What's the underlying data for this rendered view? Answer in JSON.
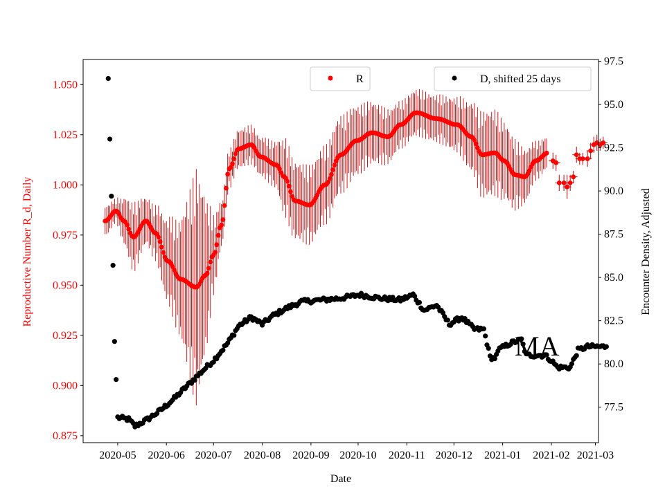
{
  "chart_data": {
    "type": "scatter",
    "xlabel": "Date",
    "ylabel_left": "Reproductive Number R_d, Daily",
    "ylabel_right": "Encounter Density, Adjusted",
    "annotation": "MA",
    "colors": {
      "left_axis": "#ff0000",
      "r_series": "#ff0000",
      "r_errorbar": "#cc0000",
      "d_series": "#000000",
      "frame": "#000000"
    },
    "xlim": [
      "2020-04-09",
      "2021-03-03"
    ],
    "ylim_left": [
      0.8715,
      1.0625
    ],
    "ylim_right": [
      75.45,
      97.6
    ],
    "x_ticks": [
      "2020-05",
      "2020-06",
      "2020-07",
      "2020-08",
      "2020-09",
      "2020-10",
      "2020-11",
      "2020-12",
      "2021-01",
      "2021-02",
      "2021-03"
    ],
    "x_tick_dates": [
      "2020-05-01",
      "2020-06-01",
      "2020-07-01",
      "2020-08-01",
      "2020-09-01",
      "2020-10-01",
      "2020-11-01",
      "2020-12-01",
      "2021-01-01",
      "2021-02-01",
      "2021-03-01"
    ],
    "y_left_ticks": [
      "0.875",
      "0.900",
      "0.925",
      "0.950",
      "0.975",
      "1.000",
      "1.025",
      "1.050"
    ],
    "y_right_ticks": [
      "77.5",
      "80.0",
      "82.5",
      "85.0",
      "87.5",
      "90.0",
      "92.5",
      "95.0",
      "97.5"
    ],
    "legend_left": {
      "label": "R",
      "position": "upper center"
    },
    "legend_right": {
      "label": "D, shifted 25 days",
      "position": "upper right"
    },
    "series": [
      {
        "name": "R",
        "axis": "left",
        "marker": "dot",
        "error_bars": true,
        "knots": [
          [
            "2020-04-23",
            0.982,
            0.008
          ],
          [
            "2020-04-30",
            0.987,
            0.006
          ],
          [
            "2020-05-05",
            0.982,
            0.012
          ],
          [
            "2020-05-11",
            0.974,
            0.018
          ],
          [
            "2020-05-19",
            0.982,
            0.012
          ],
          [
            "2020-05-25",
            0.976,
            0.014
          ],
          [
            "2020-06-02",
            0.962,
            0.022
          ],
          [
            "2020-06-10",
            0.953,
            0.03
          ],
          [
            "2020-06-20",
            0.949,
            0.06
          ],
          [
            "2020-06-26",
            0.955,
            0.04
          ],
          [
            "2020-07-01",
            0.965,
            0.02
          ],
          [
            "2020-07-06",
            0.98,
            0.012
          ],
          [
            "2020-07-11",
            1.008,
            0.01
          ],
          [
            "2020-07-17",
            1.018,
            0.01
          ],
          [
            "2020-07-25",
            1.02,
            0.01
          ],
          [
            "2020-07-31",
            1.014,
            0.01
          ],
          [
            "2020-08-10",
            1.01,
            0.012
          ],
          [
            "2020-08-15",
            1.004,
            0.02
          ],
          [
            "2020-08-22",
            0.992,
            0.02
          ],
          [
            "2020-08-31",
            0.99,
            0.02
          ],
          [
            "2020-09-10",
            1.0,
            0.02
          ],
          [
            "2020-09-20",
            1.015,
            0.02
          ],
          [
            "2020-09-30",
            1.022,
            0.018
          ],
          [
            "2020-10-10",
            1.026,
            0.016
          ],
          [
            "2020-10-20",
            1.024,
            0.014
          ],
          [
            "2020-10-28",
            1.03,
            0.012
          ],
          [
            "2020-11-07",
            1.036,
            0.012
          ],
          [
            "2020-11-20",
            1.033,
            0.012
          ],
          [
            "2020-12-03",
            1.03,
            0.014
          ],
          [
            "2020-12-12",
            1.024,
            0.018
          ],
          [
            "2020-12-19",
            1.015,
            0.022
          ],
          [
            "2020-12-27",
            1.016,
            0.022
          ],
          [
            "2021-01-02",
            1.012,
            0.02
          ],
          [
            "2021-01-09",
            1.005,
            0.018
          ],
          [
            "2021-01-15",
            1.004,
            0.014
          ],
          [
            "2021-01-22",
            1.012,
            0.01
          ],
          [
            "2021-01-30",
            1.016,
            0.008
          ]
        ],
        "sparse_points": [
          [
            "2021-02-02",
            1.012,
            0.004
          ],
          [
            "2021-02-04",
            1.011,
            0.004
          ],
          [
            "2021-02-06",
            1.001,
            0.004
          ],
          [
            "2021-02-09",
            1.001,
            0.004
          ],
          [
            "2021-02-11",
            0.999,
            0.006
          ],
          [
            "2021-02-13",
            1.001,
            0.004
          ],
          [
            "2021-02-15",
            1.004,
            0.003
          ],
          [
            "2021-02-17",
            1.015,
            0.004
          ],
          [
            "2021-02-19",
            1.013,
            0.003
          ],
          [
            "2021-02-21",
            1.013,
            0.003
          ],
          [
            "2021-02-24",
            1.013,
            0.004
          ],
          [
            "2021-02-26",
            1.017,
            0.004
          ],
          [
            "2021-02-28",
            1.02,
            0.004
          ],
          [
            "2021-03-02",
            1.021,
            0.004
          ],
          [
            "2021-03-04",
            1.02,
            0.003
          ],
          [
            "2021-03-06",
            1.021,
            0.003
          ]
        ]
      },
      {
        "name": "D, shifted 25 days",
        "axis": "right",
        "marker": "dot",
        "knots": [
          [
            "2020-04-25",
            96.5
          ],
          [
            "2020-04-26",
            93.0
          ],
          [
            "2020-04-27",
            89.7
          ],
          [
            "2020-04-28",
            85.7
          ],
          [
            "2020-04-29",
            81.3
          ],
          [
            "2020-04-30",
            79.1
          ],
          [
            "2020-05-01",
            76.9
          ],
          [
            "2020-05-08",
            76.8
          ],
          [
            "2020-05-12",
            76.4
          ],
          [
            "2020-05-20",
            76.8
          ],
          [
            "2020-05-28",
            77.3
          ],
          [
            "2020-06-06",
            78.0
          ],
          [
            "2020-06-15",
            78.8
          ],
          [
            "2020-06-24",
            79.6
          ],
          [
            "2020-07-01",
            80.2
          ],
          [
            "2020-07-10",
            81.2
          ],
          [
            "2020-07-17",
            82.2
          ],
          [
            "2020-07-25",
            82.7
          ],
          [
            "2020-08-01",
            82.3
          ],
          [
            "2020-08-08",
            82.8
          ],
          [
            "2020-08-16",
            83.2
          ],
          [
            "2020-08-26",
            83.6
          ],
          [
            "2020-09-08",
            83.7
          ],
          [
            "2020-09-20",
            83.8
          ],
          [
            "2020-10-02",
            84.0
          ],
          [
            "2020-10-15",
            83.8
          ],
          [
            "2020-10-28",
            83.7
          ],
          [
            "2020-11-05",
            84.0
          ],
          [
            "2020-11-12",
            83.1
          ],
          [
            "2020-11-20",
            83.4
          ],
          [
            "2020-11-28",
            82.3
          ],
          [
            "2020-12-06",
            82.7
          ],
          [
            "2020-12-14",
            82.0
          ],
          [
            "2020-12-20",
            82.0
          ],
          [
            "2020-12-24",
            80.4
          ],
          [
            "2020-12-27",
            80.3
          ],
          [
            "2020-12-29",
            80.8
          ],
          [
            "2021-01-06",
            81.2
          ],
          [
            "2021-01-13",
            81.4
          ],
          [
            "2021-01-16",
            80.5
          ],
          [
            "2021-01-22",
            80.5
          ],
          [
            "2021-01-28",
            80.5
          ],
          [
            "2021-02-01",
            80.2
          ],
          [
            "2021-02-05",
            79.8
          ],
          [
            "2021-02-13",
            79.8
          ],
          [
            "2021-02-18",
            80.8
          ],
          [
            "2021-02-24",
            81.0
          ],
          [
            "2021-03-08",
            81.0
          ]
        ]
      }
    ]
  }
}
